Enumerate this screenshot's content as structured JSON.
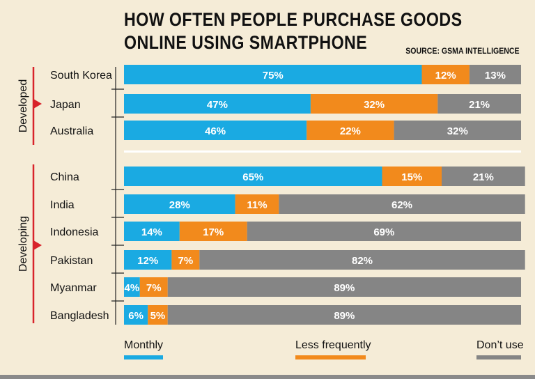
{
  "title_line1": "HOW OFTEN PEOPLE PURCHASE GOODS",
  "title_line2": "ONLINE USING SMARTPHONE",
  "source": "SOURCE: GSMA INTELLIGENCE",
  "colors": {
    "monthly": "#1aaae2",
    "less_frequently": "#f28a1c",
    "dont_use": "#858585",
    "group_marker": "#d8232a",
    "background": "#f5ecd7"
  },
  "chart_data": {
    "type": "bar",
    "orientation": "horizontal",
    "stacked": true,
    "percent": true,
    "groups": [
      {
        "name": "Developed",
        "categories": [
          "South Korea",
          "Japan",
          "Australia"
        ]
      },
      {
        "name": "Developing",
        "categories": [
          "China",
          "India",
          "Indonesia",
          "Pakistan",
          "Myanmar",
          "Bangladesh"
        ]
      }
    ],
    "categories": [
      "South Korea",
      "Japan",
      "Australia",
      "China",
      "India",
      "Indonesia",
      "Pakistan",
      "Myanmar",
      "Bangladesh"
    ],
    "series": [
      {
        "name": "Monthly",
        "values": [
          75,
          47,
          46,
          65,
          28,
          14,
          12,
          4,
          6
        ]
      },
      {
        "name": "Less frequently",
        "values": [
          12,
          32,
          22,
          15,
          11,
          17,
          7,
          7,
          5
        ]
      },
      {
        "name": "Don’t use",
        "values": [
          13,
          21,
          32,
          21,
          62,
          69,
          82,
          89,
          89
        ]
      }
    ],
    "xlim": [
      0,
      100
    ],
    "legend_position": "bottom"
  }
}
